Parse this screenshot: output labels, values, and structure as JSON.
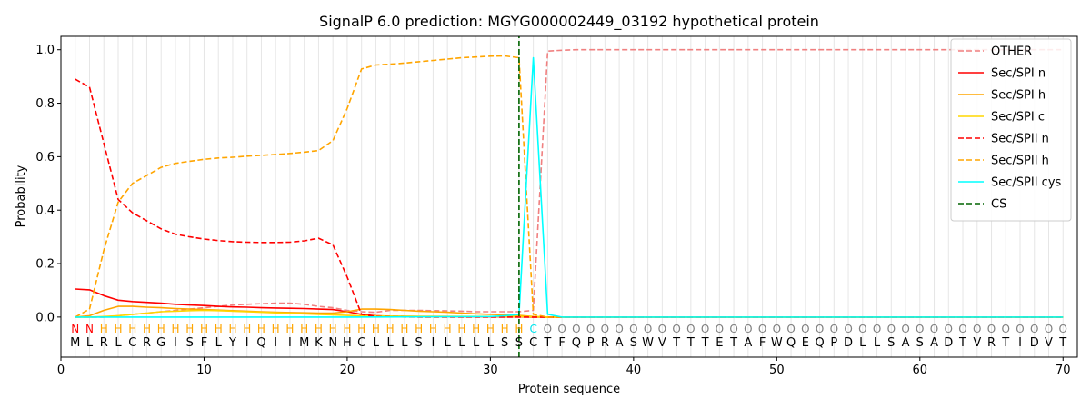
{
  "chart_data": {
    "type": "line",
    "title": "SignalP 6.0 prediction: MGYG000002449_03192 hypothetical protein",
    "xlabel": "Protein sequence",
    "ylabel": "Probability",
    "xlim": [
      0,
      71
    ],
    "ylim": [
      -0.15,
      1.05
    ],
    "xticks": [
      0,
      10,
      20,
      30,
      40,
      50,
      60,
      70
    ],
    "yticks": [
      0.0,
      0.2,
      0.4,
      0.6,
      0.8,
      1.0
    ],
    "grid": "vertical lines at each residue",
    "legend_position": "top-right",
    "cleavage_site": 32,
    "sequence": [
      "M",
      "L",
      "R",
      "L",
      "C",
      "R",
      "G",
      "I",
      "S",
      "F",
      "L",
      "Y",
      "I",
      "Q",
      "I",
      "I",
      "M",
      "K",
      "N",
      "H",
      "C",
      "L",
      "L",
      "L",
      "S",
      "I",
      "L",
      "L",
      "L",
      "L",
      "S",
      "S",
      "C",
      "T",
      "F",
      "Q",
      "P",
      "R",
      "A",
      "S",
      "W",
      "V",
      "T",
      "T",
      "T",
      "E",
      "T",
      "A",
      "F",
      "W",
      "Q",
      "E",
      "Q",
      "P",
      "D",
      "L",
      "L",
      "S",
      "A",
      "S",
      "A",
      "D",
      "T",
      "V",
      "R",
      "T",
      "I",
      "D",
      "V",
      "T"
    ],
    "prediction": [
      "N",
      "N",
      "H",
      "H",
      "H",
      "H",
      "H",
      "H",
      "H",
      "H",
      "H",
      "H",
      "H",
      "H",
      "H",
      "H",
      "H",
      "H",
      "H",
      "H",
      "H",
      "H",
      "H",
      "H",
      "H",
      "H",
      "H",
      "H",
      "H",
      "H",
      "H",
      "H",
      "C",
      "O",
      "O",
      "O",
      "O",
      "O",
      "O",
      "O",
      "O",
      "O",
      "O",
      "O",
      "O",
      "O",
      "O",
      "O",
      "O",
      "O",
      "O",
      "O",
      "O",
      "O",
      "O",
      "O",
      "O",
      "O",
      "O",
      "O",
      "O",
      "O",
      "O",
      "O",
      "O",
      "O",
      "O",
      "O",
      "O",
      "O"
    ],
    "prediction_colors": {
      "N": "#ff0000",
      "H": "#ffa500",
      "C": "#00e5ee",
      "O": "#808080"
    },
    "series": [
      {
        "name": "OTHER",
        "color": "#f08080",
        "dash": "dashed",
        "x": [
          1,
          2,
          3,
          4,
          5,
          6,
          7,
          8,
          9,
          10,
          11,
          12,
          13,
          14,
          15,
          16,
          17,
          18,
          19,
          20,
          21,
          22,
          23,
          24,
          25,
          26,
          27,
          28,
          29,
          30,
          31,
          32,
          33,
          34,
          35,
          36,
          37,
          38,
          39,
          40,
          45,
          50,
          55,
          60,
          65,
          70
        ],
        "y": [
          0.0,
          0.0,
          0.0,
          0.005,
          0.01,
          0.015,
          0.02,
          0.025,
          0.03,
          0.035,
          0.04,
          0.045,
          0.048,
          0.05,
          0.052,
          0.052,
          0.048,
          0.04,
          0.035,
          0.025,
          0.02,
          0.018,
          0.025,
          0.025,
          0.025,
          0.024,
          0.023,
          0.022,
          0.02,
          0.02,
          0.02,
          0.02,
          0.025,
          0.995,
          0.998,
          1.0,
          1.0,
          1.0,
          1.0,
          1.0,
          1.0,
          1.0,
          1.0,
          1.0,
          1.0,
          1.0
        ]
      },
      {
        "name": "Sec/SPI n",
        "color": "#ff0000",
        "dash": "solid",
        "x": [
          1,
          2,
          3,
          4,
          5,
          6,
          7,
          8,
          9,
          10,
          11,
          12,
          13,
          14,
          15,
          16,
          17,
          18,
          19,
          20,
          21,
          22,
          23,
          25,
          30,
          32,
          33,
          34,
          40,
          50,
          60,
          70
        ],
        "y": [
          0.105,
          0.102,
          0.08,
          0.063,
          0.058,
          0.055,
          0.052,
          0.048,
          0.045,
          0.043,
          0.04,
          0.038,
          0.037,
          0.035,
          0.034,
          0.033,
          0.032,
          0.03,
          0.028,
          0.02,
          0.01,
          0.005,
          0.003,
          0.002,
          0.001,
          0.001,
          0.0,
          0.0,
          0.0,
          0.0,
          0.0,
          0.0
        ]
      },
      {
        "name": "Sec/SPI h",
        "color": "#ffa500",
        "dash": "solid",
        "x": [
          1,
          2,
          3,
          4,
          5,
          6,
          7,
          8,
          9,
          10,
          11,
          12,
          13,
          14,
          15,
          16,
          17,
          18,
          19,
          20,
          21,
          22,
          23,
          24,
          25,
          26,
          27,
          28,
          29,
          30,
          31,
          32,
          33,
          34,
          40,
          50,
          60,
          70
        ],
        "y": [
          0.0,
          0.005,
          0.025,
          0.04,
          0.04,
          0.037,
          0.035,
          0.032,
          0.03,
          0.028,
          0.026,
          0.024,
          0.022,
          0.02,
          0.018,
          0.017,
          0.016,
          0.015,
          0.015,
          0.02,
          0.03,
          0.03,
          0.028,
          0.025,
          0.022,
          0.02,
          0.018,
          0.015,
          0.012,
          0.01,
          0.008,
          0.006,
          0.002,
          0.0,
          0.0,
          0.0,
          0.0,
          0.0
        ]
      },
      {
        "name": "Sec/SPI c",
        "color": "#ffd700",
        "dash": "solid",
        "x": [
          1,
          2,
          3,
          4,
          5,
          6,
          7,
          8,
          9,
          10,
          11,
          12,
          13,
          14,
          15,
          16,
          17,
          18,
          19,
          20,
          21,
          22,
          25,
          30,
          32,
          33,
          34,
          40,
          50,
          60,
          70
        ],
        "y": [
          0.0,
          0.0,
          0.002,
          0.005,
          0.01,
          0.015,
          0.02,
          0.022,
          0.024,
          0.025,
          0.024,
          0.022,
          0.02,
          0.018,
          0.016,
          0.014,
          0.012,
          0.01,
          0.008,
          0.006,
          0.005,
          0.004,
          0.003,
          0.002,
          0.002,
          0.001,
          0.0,
          0.0,
          0.0,
          0.0,
          0.0
        ]
      },
      {
        "name": "Sec/SPII n",
        "color": "#ff0000",
        "dash": "dashed",
        "x": [
          1,
          2,
          3,
          4,
          5,
          6,
          7,
          8,
          9,
          10,
          11,
          12,
          13,
          14,
          15,
          16,
          17,
          18,
          19,
          20,
          21,
          22,
          23,
          25,
          30,
          32,
          33,
          40,
          50,
          60,
          70
        ],
        "y": [
          0.89,
          0.86,
          0.65,
          0.44,
          0.39,
          0.36,
          0.33,
          0.31,
          0.3,
          0.292,
          0.286,
          0.282,
          0.28,
          0.279,
          0.279,
          0.28,
          0.285,
          0.295,
          0.27,
          0.15,
          0.01,
          0.002,
          0.001,
          0.0,
          0.0,
          0.0,
          0.0,
          0.0,
          0.0,
          0.0,
          0.0
        ]
      },
      {
        "name": "Sec/SPII h",
        "color": "#ffa500",
        "dash": "dashed",
        "x": [
          1,
          2,
          3,
          4,
          5,
          6,
          7,
          8,
          9,
          10,
          11,
          12,
          13,
          14,
          15,
          16,
          17,
          18,
          19,
          20,
          21,
          22,
          23,
          24,
          25,
          26,
          27,
          28,
          29,
          30,
          31,
          32,
          33,
          34,
          40,
          50,
          60,
          70
        ],
        "y": [
          0.0,
          0.03,
          0.25,
          0.43,
          0.5,
          0.53,
          0.56,
          0.575,
          0.583,
          0.59,
          0.595,
          0.598,
          0.602,
          0.605,
          0.608,
          0.612,
          0.617,
          0.623,
          0.66,
          0.78,
          0.928,
          0.943,
          0.946,
          0.95,
          0.955,
          0.96,
          0.965,
          0.97,
          0.973,
          0.976,
          0.977,
          0.97,
          0.01,
          0.0,
          0.0,
          0.0,
          0.0,
          0.0
        ]
      },
      {
        "name": "Sec/SPII cys",
        "color": "#00ffff",
        "dash": "solid",
        "x": [
          1,
          10,
          20,
          30,
          31,
          32,
          33,
          34,
          35,
          40,
          50,
          60,
          70
        ],
        "y": [
          0.0,
          0.0,
          0.0,
          0.002,
          0.005,
          0.01,
          0.97,
          0.01,
          0.0,
          0.0,
          0.0,
          0.0,
          0.0
        ]
      },
      {
        "name": "CS",
        "color": "#006400",
        "dash": "dashed",
        "x": [
          32,
          32
        ],
        "y": [
          -0.15,
          1.05
        ]
      }
    ]
  }
}
